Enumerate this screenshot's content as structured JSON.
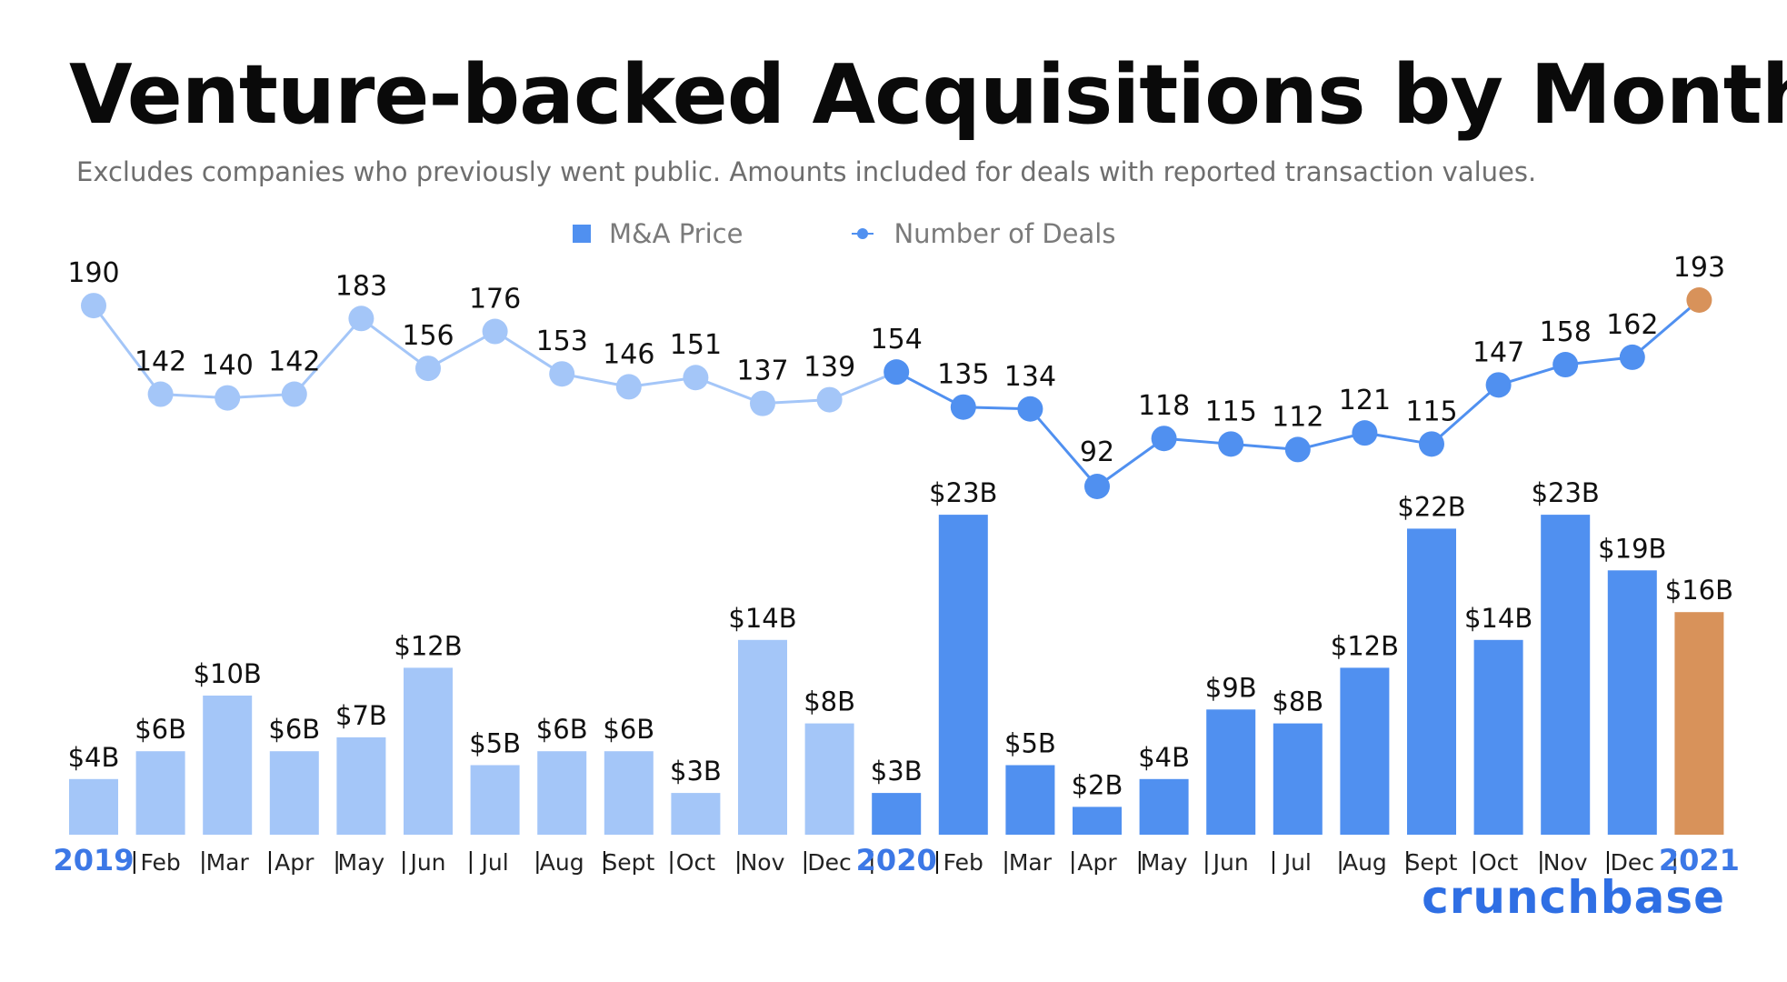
{
  "title": "Venture-backed Acquisitions by Month",
  "subtitle": "Excludes companies who previously went public. Amounts included for deals with reported transaction values.",
  "legend": {
    "bar_label": "M&A Price",
    "line_label": "Number of Deals"
  },
  "brand": "crunchbase",
  "colors": {
    "light_blue": "#a4c6f8",
    "blue": "#5090f0",
    "orange": "#d8925a",
    "year_text": "#3c78e6"
  },
  "chart_data": {
    "type": "bar",
    "categories": [
      "2019",
      "Feb",
      "Mar",
      "Apr",
      "May",
      "Jun",
      "Jul",
      "Aug",
      "Sept",
      "Oct",
      "Nov",
      "Dec",
      "2020",
      "Feb",
      "Mar",
      "Apr",
      "May",
      "Jun",
      "Jul",
      "Aug",
      "Sept",
      "Oct",
      "Nov",
      "Dec",
      "2021"
    ],
    "year_markers": [
      "2019",
      "2020",
      "2021"
    ],
    "series": [
      {
        "name": "M&A Price",
        "type": "bar",
        "values": [
          4,
          6,
          10,
          6,
          7,
          12,
          5,
          6,
          6,
          3,
          14,
          8,
          3,
          23,
          5,
          2,
          4,
          9,
          8,
          12,
          22,
          14,
          23,
          19,
          16
        ],
        "labels": [
          "$4B",
          "$6B",
          "$10B",
          "$6B",
          "$7B",
          "$12B",
          "$5B",
          "$6B",
          "$6B",
          "$3B",
          "$14B",
          "$8B",
          "$3B",
          "$23B",
          "$5B",
          "$2B",
          "$4B",
          "$9B",
          "$8B",
          "$12B",
          "$22B",
          "$14B",
          "$23B",
          "$19B",
          "$16B"
        ]
      },
      {
        "name": "Number of Deals",
        "type": "line",
        "values": [
          190,
          142,
          140,
          142,
          183,
          156,
          176,
          153,
          146,
          151,
          137,
          139,
          154,
          135,
          134,
          92,
          118,
          115,
          112,
          121,
          115,
          147,
          158,
          162,
          193
        ]
      }
    ],
    "color_groups": {
      "2019": [
        0,
        11
      ],
      "2020": [
        12,
        23
      ],
      "2021": [
        24,
        24
      ]
    }
  }
}
